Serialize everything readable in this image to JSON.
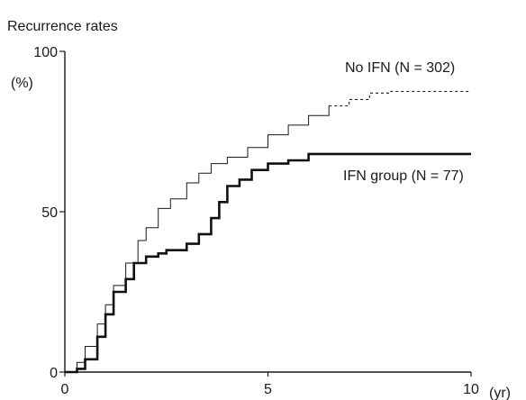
{
  "chart_data": {
    "type": "line",
    "title": "",
    "ylabel": "Recurrence rates",
    "yunit": "(%)",
    "xunit": "(yr)",
    "xlim": [
      0,
      10
    ],
    "ylim": [
      0,
      100
    ],
    "xticks": [
      0,
      5,
      10
    ],
    "yticks": [
      0,
      50,
      100
    ],
    "grid": false,
    "series": [
      {
        "name": "No IFN (N = 302)",
        "style": "thin-then-dashed",
        "dashed_from_x": 6.6,
        "x": [
          0,
          0.3,
          0.5,
          0.8,
          1.0,
          1.2,
          1.5,
          1.8,
          2.0,
          2.3,
          2.6,
          3.0,
          3.3,
          3.6,
          4.0,
          4.5,
          5.0,
          5.5,
          6.0,
          6.5,
          7.0,
          7.5,
          8.0,
          8.5,
          9.0,
          10.0
        ],
        "y": [
          0,
          3,
          8,
          15,
          21,
          27,
          34,
          41,
          45,
          51,
          54,
          59,
          62,
          65,
          67,
          70,
          74,
          77,
          80,
          83,
          85,
          87,
          87.5,
          87.5,
          87.5,
          87.5
        ]
      },
      {
        "name": "IFN group (N = 77)",
        "style": "bold-step",
        "x": [
          0,
          0.3,
          0.5,
          0.8,
          1.0,
          1.2,
          1.5,
          1.7,
          2.0,
          2.3,
          2.5,
          3.0,
          3.3,
          3.6,
          3.8,
          4.0,
          4.3,
          4.6,
          5.0,
          5.5,
          6.0,
          7.0,
          10.0
        ],
        "y": [
          0,
          1,
          4,
          11,
          18,
          25,
          29,
          34,
          36,
          37,
          38,
          40,
          43,
          48,
          53,
          58,
          60,
          63,
          65,
          66,
          68,
          68,
          68
        ]
      }
    ]
  }
}
